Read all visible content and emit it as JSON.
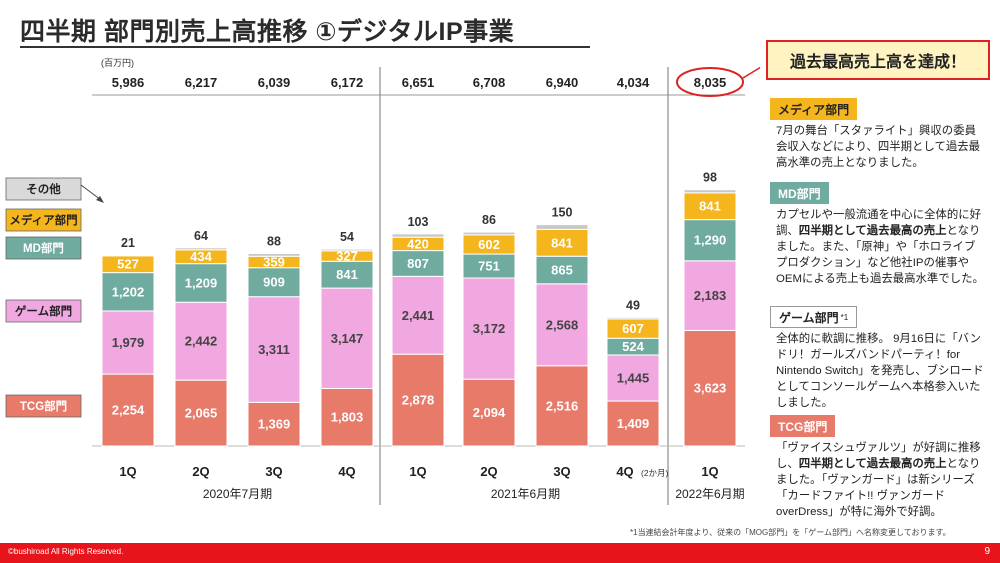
{
  "title": "四半期 部門別売上高推移 ①デジタルIP事業",
  "callout": "過去最高売上高を達成！",
  "chart_data": {
    "type": "bar",
    "stacked": true,
    "unit": "(百万円)",
    "categories": [
      "1Q",
      "2Q",
      "3Q",
      "4Q",
      "1Q",
      "2Q",
      "3Q",
      "4Q",
      "1Q"
    ],
    "category_suffix": [
      "",
      "",
      "",
      "",
      "",
      "",
      "",
      "(2か月)",
      ""
    ],
    "totals": [
      "5,986",
      "6,217",
      "6,039",
      "6,172",
      "6,651",
      "6,708",
      "6,940",
      "4,034",
      "8,035"
    ],
    "groups": [
      {
        "label": "2020年7月期",
        "from": 0,
        "to": 3
      },
      {
        "label": "2021年6月期",
        "from": 4,
        "to": 7
      },
      {
        "label": "2022年6月期",
        "from": 8,
        "to": 8
      }
    ],
    "highlight_index": 8,
    "series": [
      {
        "name": "TCG部門",
        "color": "#e87a6a",
        "values": [
          2254,
          2065,
          1369,
          1803,
          2878,
          2094,
          2516,
          1409,
          3623
        ],
        "labels": [
          "2,254",
          "2,065",
          "1,369",
          "1,803",
          "2,878",
          "2,094",
          "2,516",
          "1,409",
          "3,623"
        ]
      },
      {
        "name": "ゲーム部門",
        "color": "#f1a8e1",
        "values": [
          1979,
          2442,
          3311,
          3147,
          2441,
          3172,
          2568,
          1445,
          2183
        ],
        "labels": [
          "1,979",
          "2,442",
          "3,311",
          "3,147",
          "2,441",
          "3,172",
          "2,568",
          "1,445",
          "2,183"
        ]
      },
      {
        "name": "MD部門",
        "color": "#6fab9f",
        "values": [
          1202,
          1209,
          909,
          841,
          807,
          751,
          865,
          524,
          1290
        ],
        "labels": [
          "1,202",
          "1,209",
          "909",
          "841",
          "807",
          "751",
          "865",
          "524",
          "1,290"
        ]
      },
      {
        "name": "メディア部門",
        "color": "#f5b51c",
        "values": [
          527,
          434,
          359,
          327,
          420,
          602,
          841,
          607,
          841
        ],
        "labels": [
          "527",
          "434",
          "359",
          "327",
          "420",
          "602",
          "841",
          "607",
          "841"
        ]
      },
      {
        "name": "その他",
        "color": "#c8c8c8",
        "values": [
          21,
          64,
          88,
          54,
          103,
          86,
          150,
          49,
          98
        ],
        "labels": [
          "21",
          "64",
          "88",
          "54",
          "103",
          "86",
          "150",
          "49",
          "98"
        ]
      }
    ],
    "legend": [
      {
        "name": "その他",
        "color": "#d9d9d9",
        "text_color": "#222"
      },
      {
        "name": "メディア部門",
        "color": "#f5b51c",
        "text_color": "#222"
      },
      {
        "name": "MD部門",
        "color": "#6fab9f",
        "text_color": "#ffffff"
      },
      {
        "name": "ゲーム部門",
        "color": "#f1a8e1",
        "text_color": "#222"
      },
      {
        "name": "TCG部門",
        "color": "#e87a6a",
        "text_color": "#ffffff"
      }
    ]
  },
  "sections": [
    {
      "label": "メディア部門",
      "color": "#f5b51c",
      "text": "7月の舞台「スタァライト」興収の委員会収入などにより、四半期として過去最高水準の売上となりました。"
    },
    {
      "label": "MD部門",
      "color": "#6fab9f",
      "text_pre": "カプセルや一般流通を中心に全体的に好調、",
      "text_bold": "四半期として過去最高の売上",
      "text_post": "となりました。また、「原神」や「ホロライブプロダクション」など他社IPの催事やOEMによる売上も過去最高水準でした。"
    },
    {
      "label": "ゲーム部門",
      "note": "*1",
      "text": "全体的に軟調に推移。 9月16日に「バンドリ！ガールズバンドパーティ！for Nintendo Switch」を発売し、ブシロードとしてコンソールゲームへ本格参入いたしました。"
    },
    {
      "label": "TCG部門",
      "color": "#e87a6a",
      "text_pre": "「ヴァイスシュヴァルツ」が好調に推移し、",
      "text_bold": "四半期として過去最高の売上",
      "text_post": "となりました。「ヴァンガード」は新シリーズ「カードファイト!! ヴァンガード overDress」が特に海外で好調。"
    }
  ],
  "footnote": "*1当連結会計年度より、従来の「MOG部門」を「ゲーム部門」へ名称変更しております。",
  "footer": {
    "copyright": "©bushiroad All Rights Reserved.",
    "page": "9"
  }
}
